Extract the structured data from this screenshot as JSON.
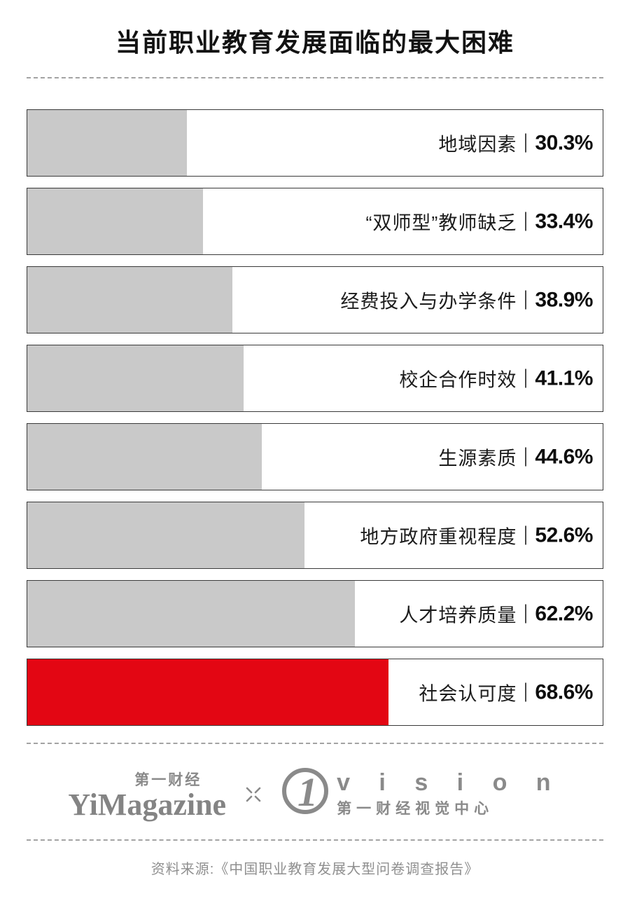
{
  "title": "当前职业教育发展面临的最大困难",
  "chart_data": {
    "type": "bar",
    "orientation": "horizontal",
    "title": "当前职业教育发展面临的最大困难",
    "categories": [
      "地域因素",
      "“双师型”教师缺乏",
      "经费投入与办学条件",
      "校企合作时效",
      "生源素质",
      "地方政府重视程度",
      "人才培养质量",
      "社会认可度"
    ],
    "values": [
      30.3,
      33.4,
      38.9,
      41.1,
      44.6,
      52.6,
      62.2,
      68.6
    ],
    "value_labels": [
      "30.3%",
      "33.4%",
      "38.9%",
      "41.1%",
      "44.6%",
      "52.6%",
      "62.2%",
      "68.6%"
    ],
    "xlabel": "",
    "ylabel": "",
    "xlim": [
      0,
      75
    ],
    "grid": false,
    "legend": false,
    "bar_color_default": "#c9c9c9",
    "bar_color_highlight": "#e30613",
    "highlight_index": 7,
    "bar_scale": 0.915
  },
  "footer": {
    "logo_left": {
      "top": "第一财经",
      "main": "YiMagazine"
    },
    "separator": "×",
    "logo_right": {
      "mark": "1",
      "main": "v i s i o n",
      "sub": "第一财经视觉中心"
    },
    "source": "资料来源:《中国职业教育发展大型问卷调查报告》"
  },
  "colors": {
    "bar_gray": "#c9c9c9",
    "bar_red": "#e30613",
    "border": "#3a3a3a",
    "dashed_rule": "#a3a3a3",
    "logo_gray": "#8a8a8a",
    "source_text": "#8f8f8f"
  }
}
